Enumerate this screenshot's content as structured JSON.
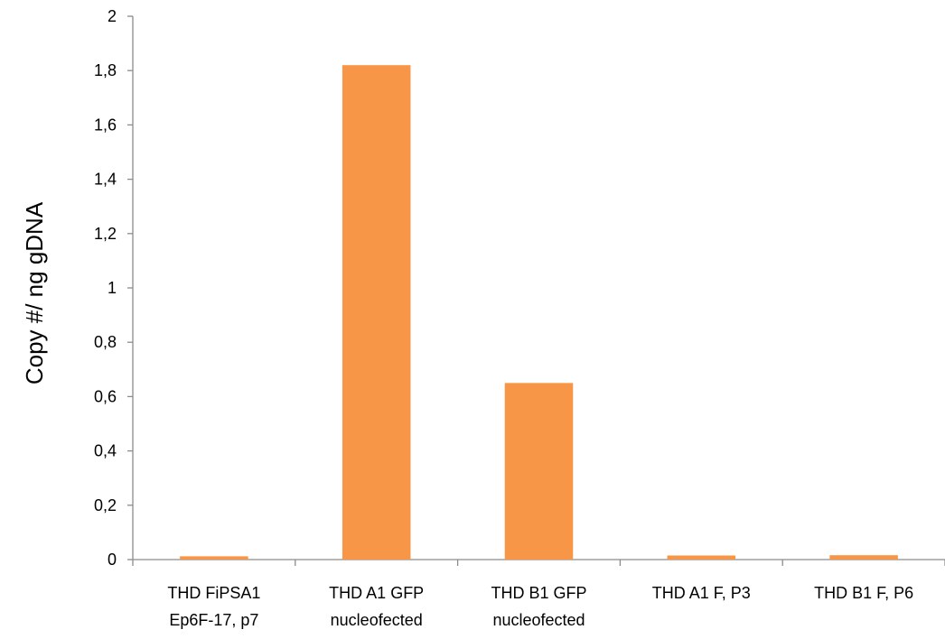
{
  "chart_data": {
    "type": "bar",
    "categories": [
      [
        "THD FiPSA1",
        "Ep6F-17, p7"
      ],
      [
        "THD A1 GFP",
        "nucleofected"
      ],
      [
        "THD B1 GFP",
        "nucleofected"
      ],
      [
        "THD A1 F, P3"
      ],
      [
        "THD B1 F, P6"
      ]
    ],
    "values": [
      0.012,
      1.82,
      0.65,
      0.015,
      0.016
    ],
    "ylabel": "Copy #/ ng gDNA",
    "xlabel": "",
    "ylim": [
      0,
      2
    ],
    "yticks": [
      0,
      0.2,
      0.4,
      0.6,
      0.8,
      1,
      1.2,
      1.4,
      1.6,
      1.8,
      2
    ],
    "ytick_labels": [
      "0",
      "0,2",
      "0,4",
      "0,6",
      "0,8",
      "1",
      "1,2",
      "1,4",
      "1,6",
      "1,8",
      "2"
    ],
    "bar_color": "#F79646",
    "grid": false,
    "legend": "none"
  }
}
